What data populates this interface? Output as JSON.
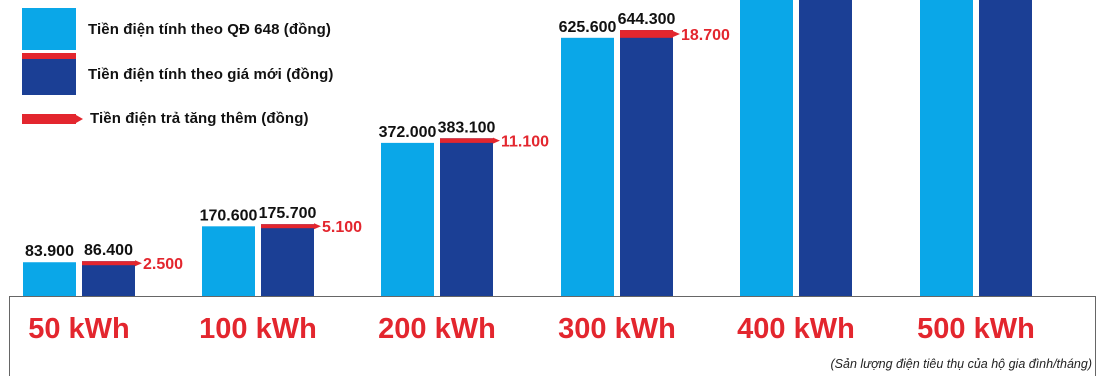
{
  "chart_data": {
    "type": "bar",
    "categories": [
      "50 kWh",
      "100 kWh",
      "200 kWh",
      "300 kWh",
      "400 kWh",
      "500 kWh"
    ],
    "series": [
      {
        "name": "Tiền điện tính theo QĐ 648 (đồng)",
        "values": [
          83900,
          170600,
          372000,
          625600,
          null,
          null
        ]
      },
      {
        "name": "Tiền điện tính theo giá mới (đồng)",
        "values": [
          86400,
          175700,
          383100,
          644300,
          null,
          null
        ]
      },
      {
        "name": "Tiền điện trả tăng thêm (đồng)",
        "values": [
          2500,
          5100,
          11100,
          18700,
          null,
          null
        ]
      }
    ],
    "value_labels": {
      "old": [
        "83.900",
        "170.600",
        "372.000",
        "625.600"
      ],
      "new": [
        "86.400",
        "175.700",
        "383.100",
        "644.300"
      ],
      "increase": [
        "2.500",
        "5.100",
        "11.100",
        "18.700"
      ]
    },
    "note": "(Sản lượng điện tiêu thụ của hộ gia đình/tháng)",
    "colors": {
      "old": "#0aa7e8",
      "new": "#1b3f95",
      "increase": "#e3262e",
      "category_text": "#e3262e",
      "value_text": "#111111"
    }
  }
}
